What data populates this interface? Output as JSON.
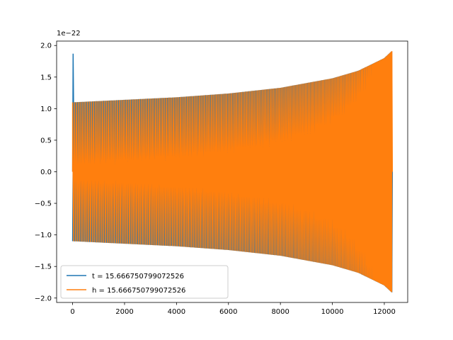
{
  "chart_data": {
    "type": "line",
    "title": "",
    "xlabel": "",
    "ylabel": "",
    "y_offset_text": "1e−22",
    "xlim": [
      -615,
      12900
    ],
    "ylim": [
      -2.07,
      2.07
    ],
    "x_ticks": [
      0,
      2000,
      4000,
      6000,
      8000,
      10000,
      12000
    ],
    "x_tick_labels": [
      "0",
      "2000",
      "4000",
      "6000",
      "8000",
      "10000",
      "12000"
    ],
    "y_ticks": [
      -2.0,
      -1.5,
      -1.0,
      -0.5,
      0.0,
      0.5,
      1.0,
      1.5,
      2.0
    ],
    "y_tick_labels": [
      "−2.0",
      "−1.5",
      "−1.0",
      "−0.5",
      "0.0",
      "0.5",
      "1.0",
      "1.5",
      "2.0"
    ],
    "grid": false,
    "legend_position": "lower-left",
    "series": [
      {
        "name": "t = 15.666750799072526",
        "color": "#1f77b4",
        "description_points": {
          "x": [
            0,
            20,
            40,
            60,
            80,
            100,
            120
          ],
          "y": [
            0.0,
            1.87,
            1.0,
            -1.0,
            1.1,
            -1.1,
            1.1
          ]
        }
      },
      {
        "name": "h = 15.666750799072526",
        "color": "#ff7f0e",
        "envelope": {
          "x": [
            0,
            2000,
            4000,
            6000,
            8000,
            10000,
            11000,
            12000,
            12290
          ],
          "amplitude": [
            1.1,
            1.14,
            1.18,
            1.24,
            1.33,
            1.48,
            1.6,
            1.8,
            1.91
          ]
        },
        "cycles": 210,
        "x_end": 12290
      }
    ]
  }
}
